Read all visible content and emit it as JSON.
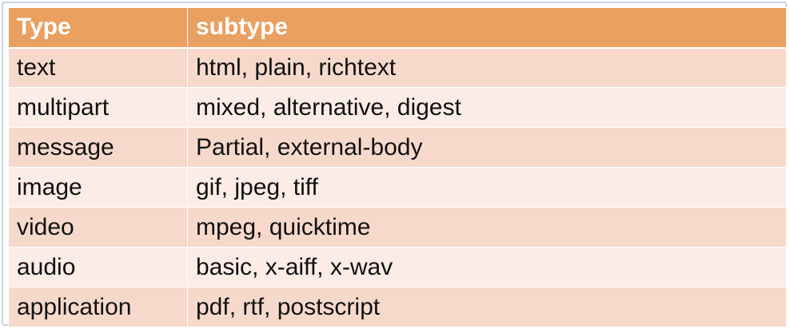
{
  "table": {
    "headers": [
      "Type",
      "subtype"
    ],
    "rows": [
      [
        "text",
        "html, plain, richtext"
      ],
      [
        "multipart",
        "mixed, alternative, digest"
      ],
      [
        "message",
        "Partial, external-body"
      ],
      [
        "image",
        "gif, jpeg, tiff"
      ],
      [
        "video",
        "mpeg, quicktime"
      ],
      [
        "audio",
        "basic, x-aiff, x-wav"
      ],
      [
        "application",
        "pdf, rtf, postscript"
      ]
    ]
  },
  "colors": {
    "header_bg": "#e9a060",
    "row_odd_bg": "#f7d9cb",
    "row_even_bg": "#fbece6",
    "frame_border": "#c9d3e6"
  }
}
